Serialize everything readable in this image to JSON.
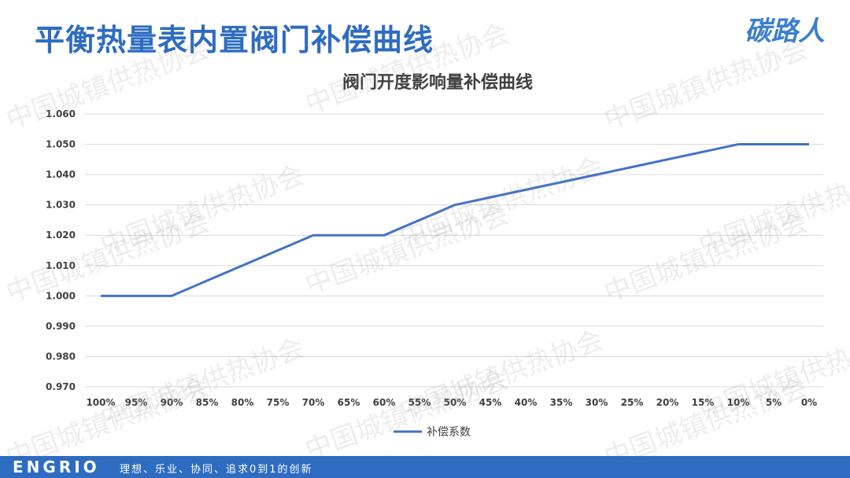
{
  "header": {
    "title": "平衡热量表内置阀门补偿曲线",
    "logo_text": "碳路人"
  },
  "watermark": {
    "text": "中国城镇供热协会"
  },
  "footer": {
    "brand": "ENGRIO",
    "slogan": "理想、乐业、协同、追求0到1的创新"
  },
  "chart_data": {
    "type": "line",
    "title": "阀门开度影响量补偿曲线",
    "xlabel": "",
    "ylabel": "",
    "categories": [
      "100%",
      "95%",
      "90%",
      "85%",
      "80%",
      "75%",
      "70%",
      "65%",
      "60%",
      "55%",
      "50%",
      "45%",
      "40%",
      "35%",
      "30%",
      "25%",
      "20%",
      "15%",
      "10%",
      "5%",
      "0%"
    ],
    "series": [
      {
        "name": "补偿系数",
        "values": [
          1.0,
          1.0,
          1.0,
          1.005,
          1.01,
          1.015,
          1.02,
          1.02,
          1.02,
          1.025,
          1.03,
          1.0325,
          1.035,
          1.0375,
          1.04,
          1.0425,
          1.045,
          1.0475,
          1.05,
          1.05,
          1.05
        ],
        "color": "#4472c4"
      }
    ],
    "yticks": [
      "1.060",
      "1.050",
      "1.040",
      "1.030",
      "1.020",
      "1.010",
      "1.000",
      "0.990",
      "0.980",
      "0.970"
    ],
    "ylim": [
      0.97,
      1.06
    ],
    "grid": true,
    "legend": "bottom"
  }
}
